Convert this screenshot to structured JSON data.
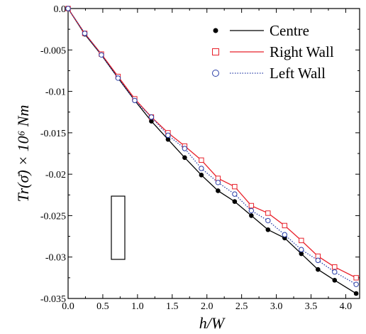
{
  "chart_data": {
    "type": "line",
    "xlabel": "h/W",
    "ylabel": "Tr(σ̄) × 10⁶ Nm",
    "xlim": [
      0,
      4.2
    ],
    "ylim": [
      -0.035,
      0.0
    ],
    "x_ticks": [
      "0.0",
      "0.5",
      "1.0",
      "1.5",
      "2.0",
      "2.5",
      "3.0",
      "3.5",
      "4.0"
    ],
    "y_ticks": [
      "0.0",
      "-0.005",
      "-0.01",
      "-0.015",
      "-0.02",
      "-0.025",
      "-0.03",
      "-0.035"
    ],
    "x": [
      0.0,
      0.24,
      0.48,
      0.72,
      0.96,
      1.2,
      1.44,
      1.68,
      1.92,
      2.16,
      2.4,
      2.64,
      2.88,
      3.12,
      3.36,
      3.6,
      3.84,
      4.15
    ],
    "series": [
      {
        "name": "Centre",
        "color": "#000000",
        "marker": "filled-circle",
        "line": "solid",
        "values": [
          0.0,
          -0.0031,
          -0.0056,
          -0.0084,
          -0.0111,
          -0.0136,
          -0.0158,
          -0.018,
          -0.0201,
          -0.022,
          -0.0233,
          -0.025,
          -0.0267,
          -0.0277,
          -0.0296,
          -0.0315,
          -0.0328,
          -0.0344
        ]
      },
      {
        "name": "Right Wall",
        "color": "#e8202a",
        "marker": "open-square",
        "line": "solid",
        "values": [
          0.0,
          -0.003,
          -0.0055,
          -0.0082,
          -0.0109,
          -0.0131,
          -0.015,
          -0.0166,
          -0.0183,
          -0.0205,
          -0.0215,
          -0.0238,
          -0.0247,
          -0.0262,
          -0.028,
          -0.0299,
          -0.0312,
          -0.0325
        ]
      },
      {
        "name": "Left Wall",
        "color": "#2b3fa8",
        "marker": "open-circle",
        "line": "dotted",
        "values": [
          0.0,
          -0.003,
          -0.0056,
          -0.0084,
          -0.0111,
          -0.0131,
          -0.0153,
          -0.0169,
          -0.0193,
          -0.021,
          -0.0224,
          -0.0244,
          -0.0256,
          -0.0273,
          -0.0291,
          -0.0304,
          -0.0318,
          -0.0333
        ]
      }
    ],
    "grid": false,
    "legend_position": "top-right"
  }
}
